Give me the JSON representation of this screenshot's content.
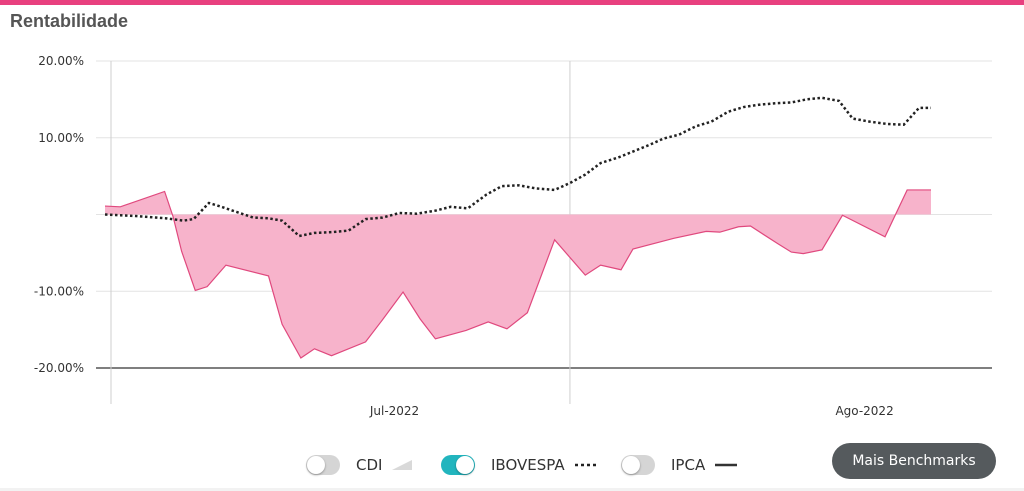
{
  "title": "Rentabilidade",
  "colors": {
    "accent": "#e8407f",
    "fund_fill": "#f7b3cb",
    "fund_line": "#e0497e",
    "toggle_on": "#22b5be",
    "button_bg": "#555a5d"
  },
  "chart_data": {
    "type": "area",
    "ylim": [
      -20,
      20
    ],
    "yticks": [
      "20.00%",
      "10.00%",
      "-10.00%",
      "-20.00%"
    ],
    "yticks_values": [
      20,
      10,
      -10,
      -20
    ],
    "xlim": [
      0,
      48.5
    ],
    "xticks": [
      "Jul-2022",
      "Ago-2022"
    ],
    "xticks_values": [
      17,
      44.6
    ],
    "vlines": [
      0,
      27.3
    ],
    "grid": true,
    "series": [
      {
        "name": "",
        "style": "area",
        "x": [
          0,
          0.9,
          3.5,
          4,
          4.5,
          5.3,
          6,
          7.1,
          9.6,
          10.4,
          11.5,
          12.3,
          13.3,
          15.3,
          16.3,
          17.5,
          18.5,
          19.4,
          21.2,
          22.5,
          23.6,
          24.8,
          26.4,
          28.2,
          29.1,
          30.3,
          31,
          33.4,
          35.3,
          36.1,
          37.2,
          37.9,
          39.5,
          40.3,
          41,
          42.1,
          43.3,
          45.8,
          47.1,
          48.5
        ],
        "values": [
          1.1,
          1,
          3,
          -0.3,
          -4.8,
          -9.9,
          -9.4,
          -6.6,
          -8,
          -14.3,
          -18.7,
          -17.5,
          -18.4,
          -16.6,
          -13.7,
          -10.1,
          -13.6,
          -16.2,
          -15.1,
          -14,
          -14.9,
          -12.8,
          -3.3,
          -7.9,
          -6.6,
          -7.2,
          -4.5,
          -3.1,
          -2.2,
          -2.3,
          -1.6,
          -1.5,
          -3.8,
          -4.9,
          -5.1,
          -4.6,
          -0.1,
          -2.9,
          3.2,
          3.2
        ]
      },
      {
        "name": "IBOVESPA",
        "style": "dotted",
        "x": [
          0,
          1.8,
          3.6,
          4.6,
          5.2,
          6.1,
          6.7,
          7.5,
          8.7,
          9.6,
          10.4,
          11.4,
          12.3,
          13.3,
          14.3,
          15.3,
          16.3,
          17.3,
          18.3,
          19.4,
          20.3,
          21.3,
          22.4,
          23.3,
          24.3,
          25.3,
          26.4,
          27.3,
          28.2,
          29.1,
          30.1,
          31,
          32,
          32.8,
          33.7,
          34.7,
          35.6,
          36.6,
          37.5,
          38.4,
          39.4,
          40.3,
          41.2,
          42.1,
          43.1,
          43.9,
          44.9,
          45.9,
          46.9,
          47.8,
          48.5
        ],
        "values": [
          0,
          -0.2,
          -0.5,
          -0.8,
          -0.6,
          1.5,
          1.1,
          0.5,
          -0.4,
          -0.5,
          -0.8,
          -2.8,
          -2.4,
          -2.3,
          -2.1,
          -0.6,
          -0.4,
          0.2,
          0.1,
          0.5,
          1,
          0.8,
          2.6,
          3.7,
          3.8,
          3.4,
          3.2,
          4.1,
          5.2,
          6.7,
          7.4,
          8.2,
          9.1,
          9.9,
          10.4,
          11.5,
          12.1,
          13.4,
          14,
          14.3,
          14.5,
          14.6,
          15,
          15.2,
          14.8,
          12.5,
          12.1,
          11.8,
          11.7,
          13.9,
          13.9
        ]
      },
      {
        "name": "CDI",
        "style": "area",
        "active": false
      },
      {
        "name": "IPCA",
        "style": "solid",
        "active": false
      }
    ]
  },
  "legend": {
    "items": [
      {
        "label": "CDI",
        "on": false
      },
      {
        "label": "IBOVESPA",
        "on": true
      },
      {
        "label": "IPCA",
        "on": false
      }
    ]
  },
  "button": {
    "label": "Mais Benchmarks"
  }
}
